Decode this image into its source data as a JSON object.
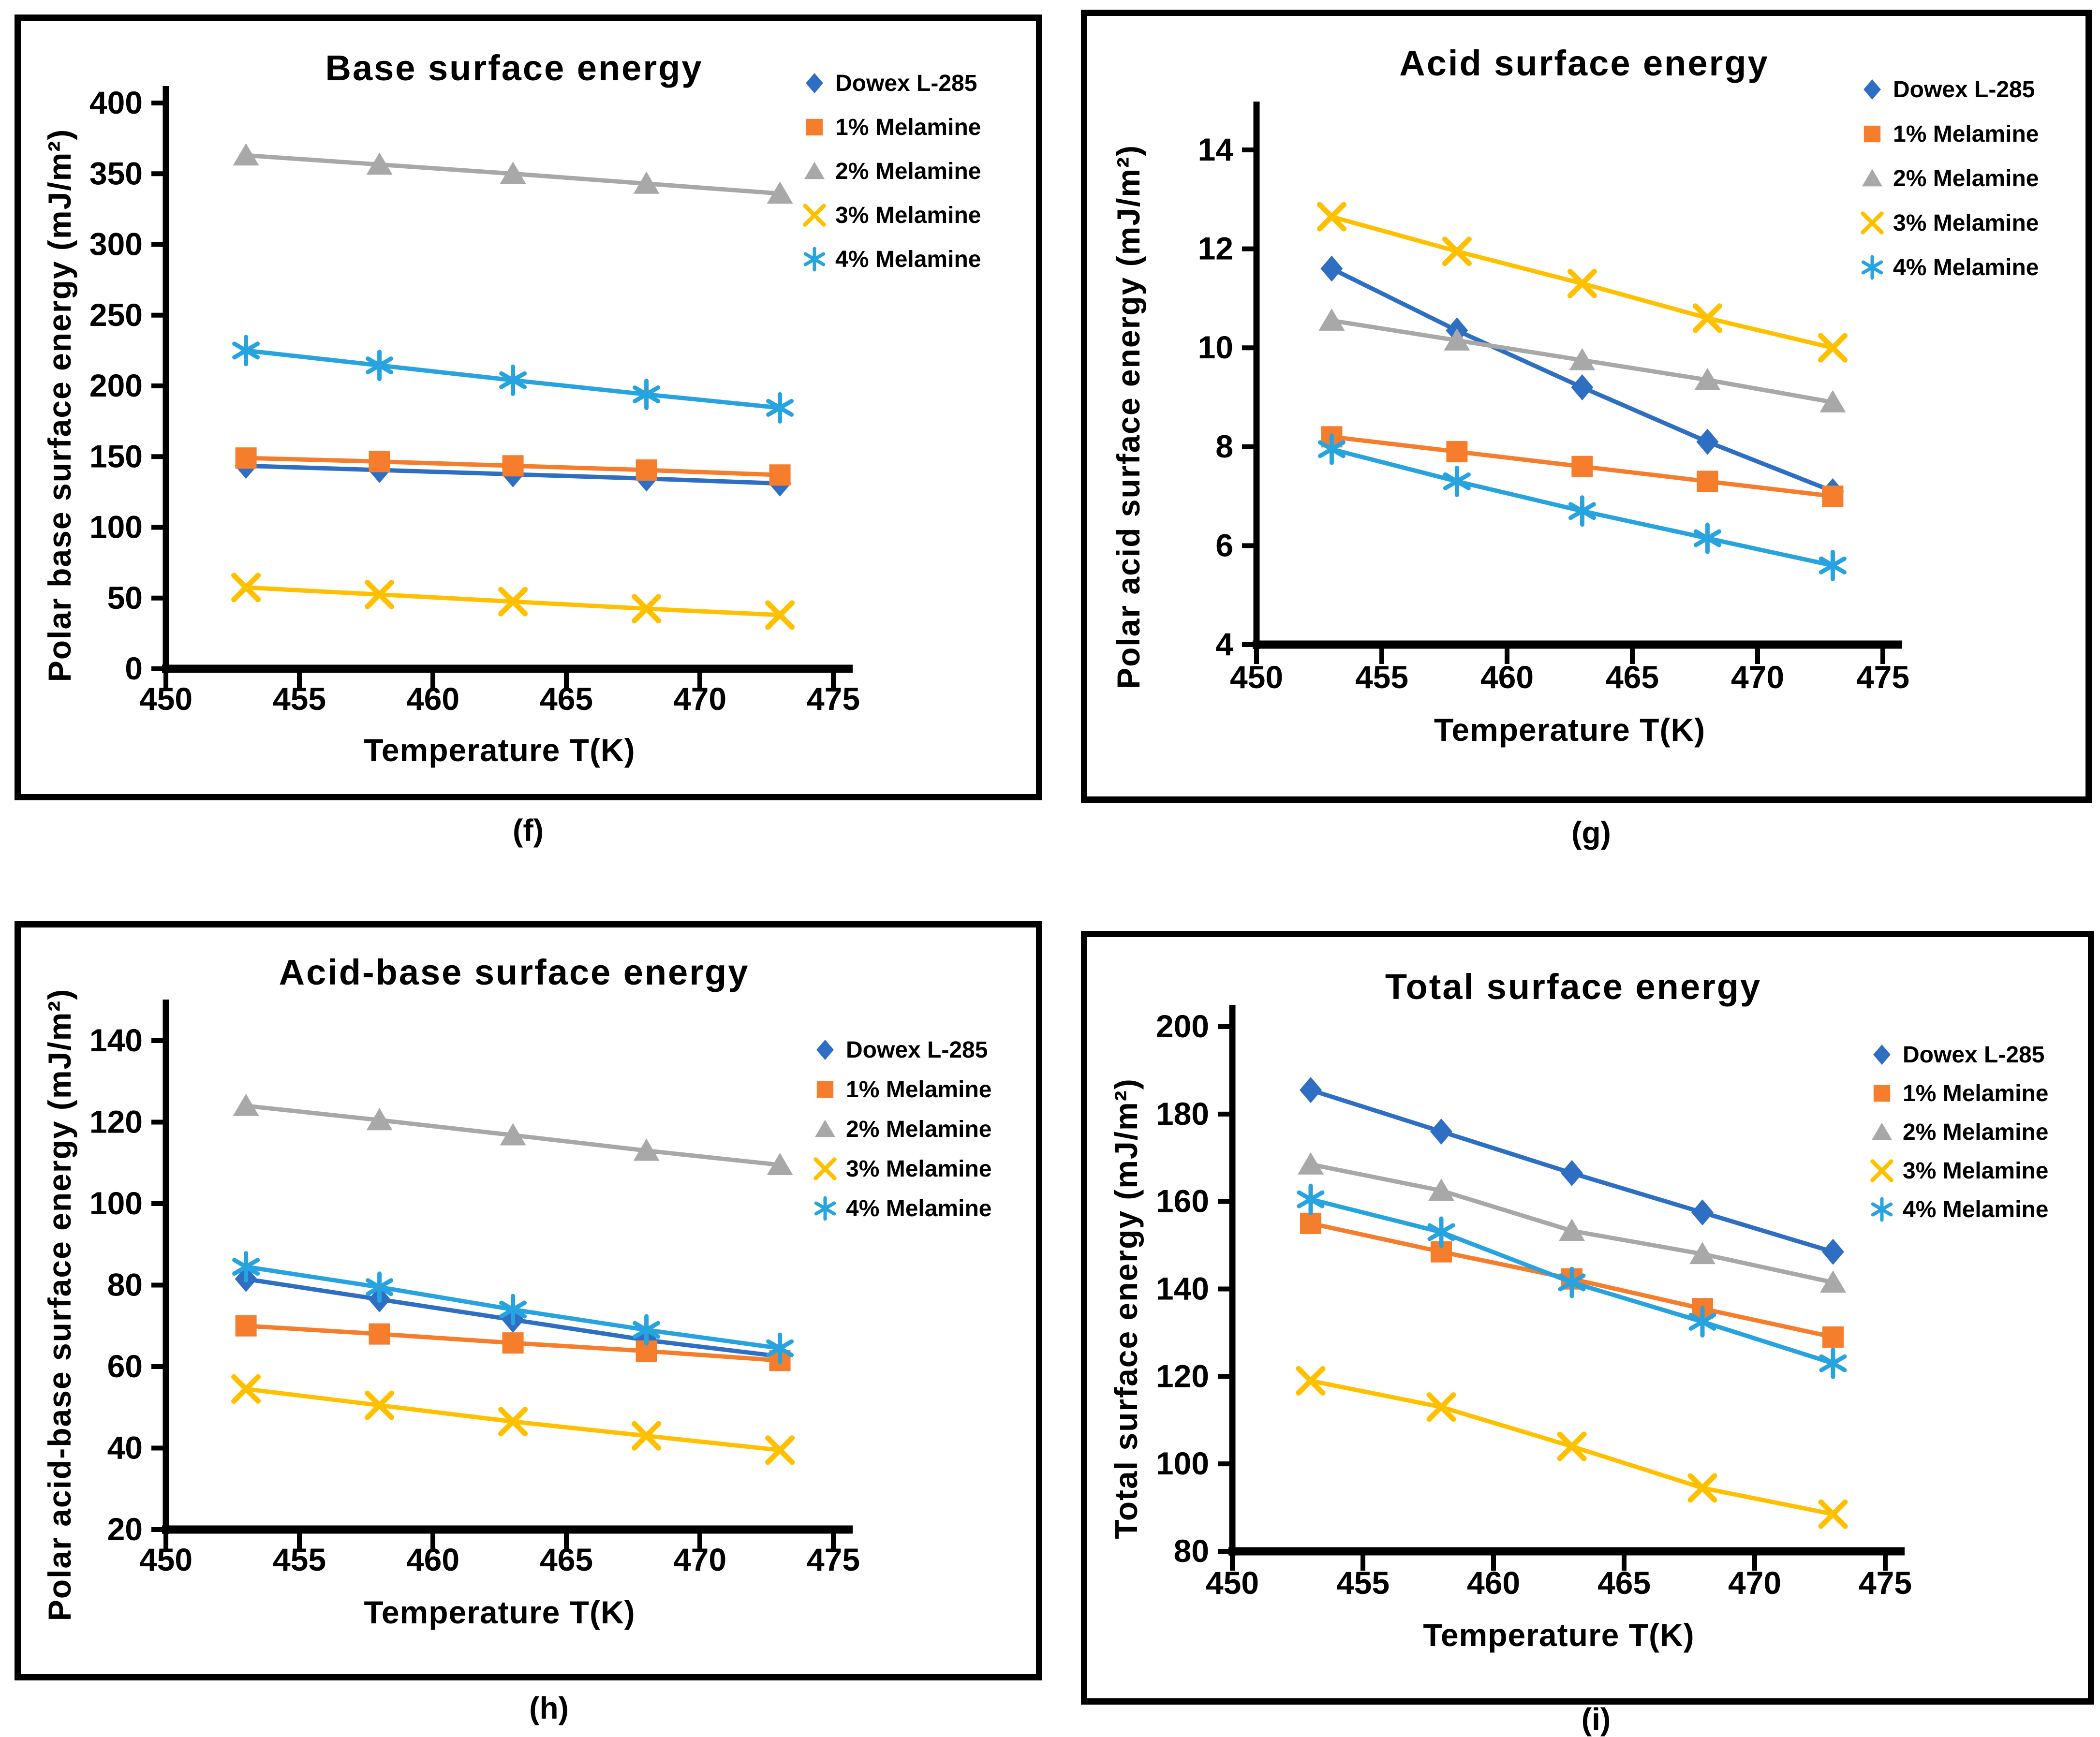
{
  "page": {
    "background": "#FFFFFF",
    "text_color": "#000000"
  },
  "chart_data": [
    {
      "type": "line",
      "panel_label": "(f)",
      "title": "Base surface energy",
      "xlabel": "Temperature T(K)",
      "ylabel": "Polar base surface energy (mJ/m²)",
      "xlim": [
        450,
        476
      ],
      "ylim": [
        0,
        400
      ],
      "xticks": [
        450,
        455,
        460,
        465,
        470,
        475
      ],
      "yticks": [
        0,
        50,
        100,
        150,
        200,
        250,
        300,
        350,
        400
      ],
      "grid": false,
      "legend_position": "right-top",
      "x": [
        453,
        458,
        463,
        468,
        473
      ],
      "series": [
        {
          "name": "Dowex L-285",
          "marker": "diamond",
          "color": "#2E6FC4",
          "values": [
            143.5,
            140.5,
            137.5,
            134.5,
            131
          ]
        },
        {
          "name": "1% Melamine",
          "marker": "square",
          "color": "#F57D2B",
          "values": [
            149,
            146.5,
            143.5,
            140.5,
            137
          ]
        },
        {
          "name": "2% Melamine",
          "marker": "triangle",
          "color": "#A8A8A8",
          "values": [
            363,
            356.5,
            350,
            343,
            336
          ]
        },
        {
          "name": "3% Melamine",
          "marker": "x",
          "color": "#FFC000",
          "values": [
            57.5,
            52.5,
            47.5,
            42.5,
            38
          ]
        },
        {
          "name": "4% Melamine",
          "marker": "asterisk",
          "color": "#27A3DF",
          "values": [
            225,
            214.5,
            204,
            194,
            184.5
          ]
        }
      ]
    },
    {
      "type": "line",
      "panel_label": "(g)",
      "title": "Acid surface energy",
      "xlabel": "Temperature T(K)",
      "ylabel": "Polar acid surface energy (mJ/m²)",
      "xlim": [
        450,
        476
      ],
      "ylim": [
        4,
        15
      ],
      "xticks": [
        450,
        455,
        460,
        465,
        470,
        475
      ],
      "yticks": [
        4,
        6,
        8,
        10,
        12,
        14
      ],
      "grid": false,
      "legend_position": "right-top",
      "x": [
        453,
        458,
        463,
        468,
        473
      ],
      "series": [
        {
          "name": "Dowex L-285",
          "marker": "diamond",
          "color": "#2E6FC4",
          "values": [
            11.6,
            10.35,
            9.2,
            8.1,
            7.1
          ]
        },
        {
          "name": "1% Melamine",
          "marker": "square",
          "color": "#F57D2B",
          "values": [
            8.2,
            7.9,
            7.6,
            7.3,
            7.0
          ]
        },
        {
          "name": "2% Melamine",
          "marker": "triangle",
          "color": "#A8A8A8",
          "values": [
            10.55,
            10.15,
            9.75,
            9.35,
            8.9
          ]
        },
        {
          "name": "3% Melamine",
          "marker": "x",
          "color": "#FFC000",
          "values": [
            12.65,
            11.95,
            11.3,
            10.6,
            10.0
          ]
        },
        {
          "name": "4% Melamine",
          "marker": "asterisk",
          "color": "#27A3DF",
          "values": [
            7.95,
            7.3,
            6.7,
            6.15,
            5.6
          ]
        }
      ]
    },
    {
      "type": "line",
      "panel_label": "(h)",
      "title": "Acid-base surface energy",
      "xlabel": "Temperature T(K)",
      "ylabel": "Polar acid-base surface energy (mJ/m²)",
      "xlim": [
        450,
        476
      ],
      "ylim": [
        20,
        150
      ],
      "xticks": [
        450,
        455,
        460,
        465,
        470,
        475
      ],
      "yticks": [
        20,
        40,
        60,
        80,
        100,
        120,
        140
      ],
      "grid": false,
      "legend_position": "right-middle",
      "x": [
        453,
        458,
        463,
        468,
        473
      ],
      "series": [
        {
          "name": "Dowex L-285",
          "marker": "diamond",
          "color": "#2E6FC4",
          "values": [
            81.5,
            76.5,
            71.5,
            66.5,
            62.5
          ]
        },
        {
          "name": "1% Melamine",
          "marker": "square",
          "color": "#F57D2B",
          "values": [
            70,
            68,
            65.8,
            63.8,
            61.5
          ]
        },
        {
          "name": "2% Melamine",
          "marker": "triangle",
          "color": "#A8A8A8",
          "values": [
            124,
            120.5,
            116.8,
            113,
            109.5
          ]
        },
        {
          "name": "3% Melamine",
          "marker": "x",
          "color": "#FFC000",
          "values": [
            54.5,
            50.5,
            46.5,
            43,
            39.5
          ]
        },
        {
          "name": "4% Melamine",
          "marker": "asterisk",
          "color": "#27A3DF",
          "values": [
            84.5,
            79.5,
            74,
            69,
            64.5
          ]
        }
      ]
    },
    {
      "type": "line",
      "panel_label": "(i)",
      "title": "Total surface energy",
      "xlabel": "Temperature T(K)",
      "ylabel": "Total surface energy (mJ/m²)",
      "xlim": [
        450,
        476
      ],
      "ylim": [
        80,
        200
      ],
      "xticks": [
        450,
        455,
        460,
        465,
        470,
        475
      ],
      "yticks": [
        80,
        100,
        120,
        140,
        160,
        180,
        200
      ],
      "grid": false,
      "legend_position": "right-middle",
      "x": [
        453,
        458,
        463,
        468,
        473
      ],
      "series": [
        {
          "name": "Dowex L-285",
          "marker": "diamond",
          "color": "#2E6FC4",
          "values": [
            185.5,
            176,
            166.5,
            157.5,
            148.5
          ]
        },
        {
          "name": "1% Melamine",
          "marker": "square",
          "color": "#F57D2B",
          "values": [
            155,
            148.5,
            142.3,
            135.5,
            129
          ]
        },
        {
          "name": "2% Melamine",
          "marker": "triangle",
          "color": "#A8A8A8",
          "values": [
            168.5,
            162.5,
            153.3,
            148,
            141.5
          ]
        },
        {
          "name": "3% Melamine",
          "marker": "x",
          "color": "#FFC000",
          "values": [
            119,
            113,
            104,
            94.5,
            88.5
          ]
        },
        {
          "name": "4% Melamine",
          "marker": "asterisk",
          "color": "#27A3DF",
          "values": [
            160.5,
            153,
            141.5,
            132.5,
            123
          ]
        }
      ]
    }
  ]
}
